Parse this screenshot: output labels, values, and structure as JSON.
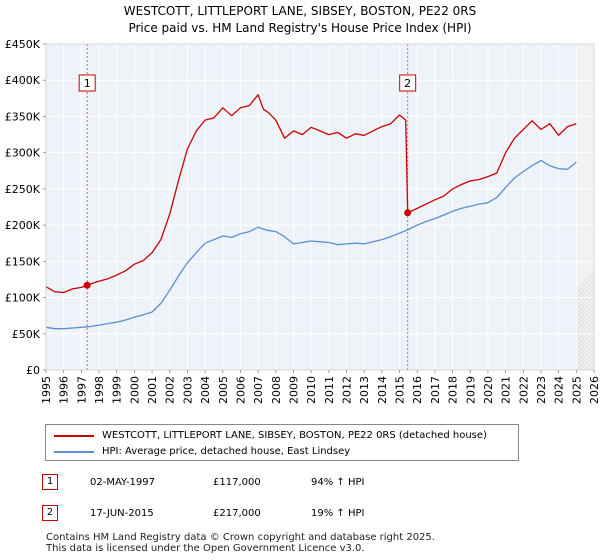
{
  "chart_data": {
    "type": "line",
    "title": "WESTCOTT, LITTLEPORT LANE, SIBSEY, BOSTON, PE22 0RS",
    "subtitle": "Price paid vs. HM Land Registry's House Price Index (HPI)",
    "xlabel": "",
    "ylabel": "",
    "xlim": [
      1995,
      2026
    ],
    "ylim": [
      0,
      450000
    ],
    "y_ticks": [
      0,
      50000,
      100000,
      150000,
      200000,
      250000,
      300000,
      350000,
      400000,
      450000
    ],
    "y_tick_labels": [
      "£0",
      "£50K",
      "£100K",
      "£150K",
      "£200K",
      "£250K",
      "£300K",
      "£350K",
      "£400K",
      "£450K"
    ],
    "x_ticks": [
      1995,
      1996,
      1997,
      1998,
      1999,
      2000,
      2001,
      2002,
      2003,
      2004,
      2005,
      2006,
      2007,
      2008,
      2009,
      2010,
      2011,
      2012,
      2013,
      2014,
      2015,
      2016,
      2017,
      2018,
      2019,
      2020,
      2021,
      2022,
      2023,
      2024,
      2025,
      2026
    ],
    "grid": true,
    "series": [
      {
        "name": "WESTCOTT, LITTLEPORT LANE, SIBSEY, BOSTON, PE22 0RS (detached house)",
        "color": "#cc0000",
        "x": [
          1995.0,
          1995.5,
          1996.0,
          1996.5,
          1997.0,
          1997.33,
          1997.8,
          1998.5,
          1999.0,
          1999.5,
          2000.0,
          2000.5,
          2001.0,
          2001.5,
          2002.0,
          2002.5,
          2003.0,
          2003.5,
          2004.0,
          2004.5,
          2005.0,
          2005.5,
          2006.0,
          2006.5,
          2007.0,
          2007.3,
          2007.6,
          2008.0,
          2008.5,
          2009.0,
          2009.5,
          2010.0,
          2010.5,
          2011.0,
          2011.5,
          2012.0,
          2012.5,
          2013.0,
          2013.5,
          2014.0,
          2014.5,
          2015.0,
          2015.35,
          2015.46,
          2016.0,
          2016.5,
          2017.0,
          2017.5,
          2018.0,
          2018.5,
          2019.0,
          2019.5,
          2020.0,
          2020.5,
          2021.0,
          2021.5,
          2022.0,
          2022.5,
          2023.0,
          2023.5,
          2024.0,
          2024.5,
          2025.0
        ],
        "values": [
          115000,
          108000,
          107000,
          112000,
          114000,
          117000,
          121000,
          126000,
          131000,
          137000,
          146000,
          151000,
          162000,
          180000,
          215000,
          262000,
          305000,
          330000,
          345000,
          348000,
          362000,
          351000,
          362000,
          365000,
          380000,
          360000,
          355000,
          345000,
          320000,
          330000,
          325000,
          335000,
          330000,
          325000,
          328000,
          320000,
          326000,
          324000,
          330000,
          336000,
          340000,
          352000,
          345000,
          217000,
          223000,
          229000,
          235000,
          240000,
          250000,
          256000,
          261000,
          263000,
          267000,
          272000,
          300000,
          320000,
          332000,
          344000,
          332000,
          340000,
          324000,
          336000,
          340000
        ]
      },
      {
        "name": "HPI: Average price, detached house, East Lindsey",
        "color": "#5b8fd0",
        "x": [
          1995.0,
          1995.5,
          1996.0,
          1996.5,
          1997.0,
          1997.5,
          1998.0,
          1998.5,
          1999.0,
          1999.5,
          2000.0,
          2000.5,
          2001.0,
          2001.5,
          2002.0,
          2002.5,
          2003.0,
          2003.5,
          2004.0,
          2004.5,
          2005.0,
          2005.5,
          2006.0,
          2006.5,
          2007.0,
          2007.5,
          2008.0,
          2008.5,
          2009.0,
          2009.5,
          2010.0,
          2010.5,
          2011.0,
          2011.5,
          2012.0,
          2012.5,
          2013.0,
          2013.5,
          2014.0,
          2014.5,
          2015.0,
          2015.5,
          2016.0,
          2016.5,
          2017.0,
          2017.5,
          2018.0,
          2018.5,
          2019.0,
          2019.5,
          2020.0,
          2020.5,
          2021.0,
          2021.5,
          2022.0,
          2022.5,
          2023.0,
          2023.5,
          2024.0,
          2024.5,
          2025.0
        ],
        "values": [
          59000,
          57000,
          57000,
          58000,
          59000,
          60000,
          62000,
          64000,
          66000,
          69000,
          73000,
          76000,
          80000,
          92000,
          110000,
          130000,
          148000,
          162000,
          175000,
          180000,
          185000,
          183000,
          188000,
          191000,
          197000,
          193000,
          191000,
          184000,
          174000,
          176000,
          178000,
          177000,
          176000,
          173000,
          174000,
          175000,
          174000,
          177000,
          180000,
          184000,
          189000,
          194000,
          200000,
          205000,
          209000,
          214000,
          219000,
          223000,
          226000,
          229000,
          231000,
          238000,
          252000,
          265000,
          274000,
          282000,
          289000,
          282000,
          278000,
          277000,
          287000
        ]
      }
    ],
    "sales": [
      {
        "label": "1",
        "x": 1997.33,
        "value": 117000
      },
      {
        "label": "2",
        "x": 2015.46,
        "value": 217000
      }
    ],
    "shaded_future_from": 2025.0
  },
  "legend": {
    "items": [
      {
        "label": "WESTCOTT, LITTLEPORT LANE, SIBSEY, BOSTON, PE22 0RS (detached house)",
        "color": "#cc0000"
      },
      {
        "label": "HPI: Average price, detached house, East Lindsey",
        "color": "#5b8fd0"
      }
    ]
  },
  "annotations": [
    {
      "num": "1",
      "date": "02-MAY-1997",
      "price": "£117,000",
      "hpi": "94% ↑ HPI"
    },
    {
      "num": "2",
      "date": "17-JUN-2015",
      "price": "£217,000",
      "hpi": "19% ↑ HPI"
    }
  ],
  "footer": {
    "line1": "Contains HM Land Registry data © Crown copyright and database right 2025.",
    "line2": "This data is licensed under the Open Government Licence v3.0."
  }
}
